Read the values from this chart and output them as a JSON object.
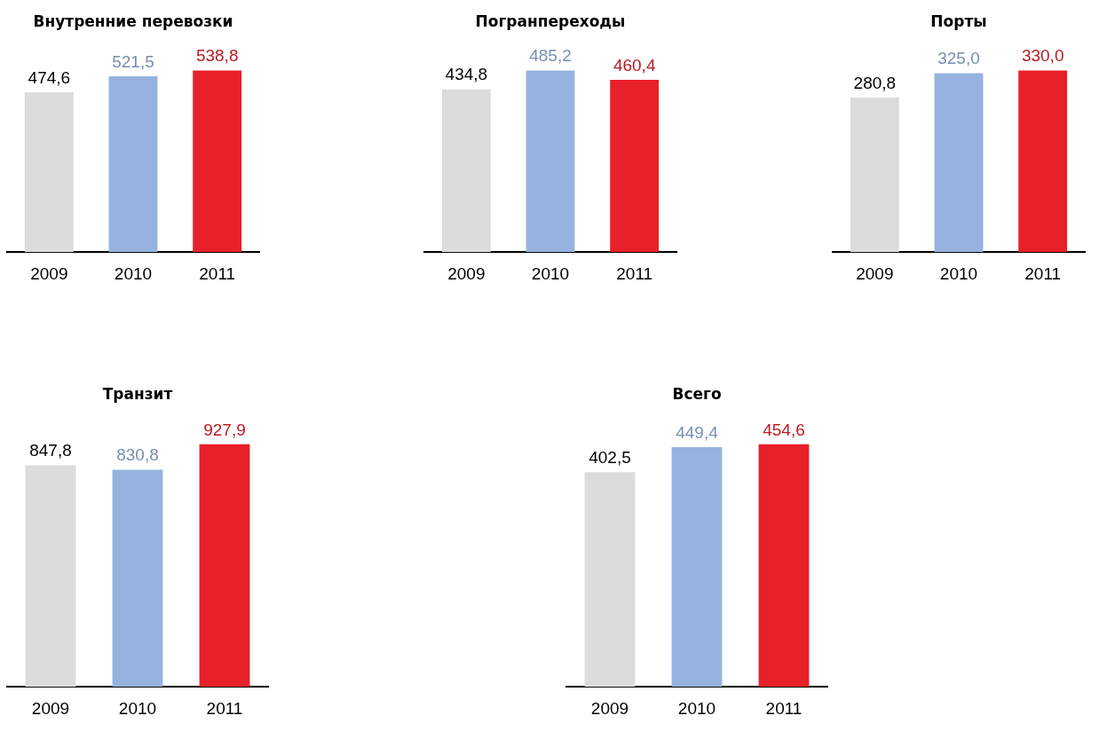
{
  "chart_data": [
    {
      "type": "bar",
      "title": "Внутренние перевозки",
      "categories": [
        "2009",
        "2010",
        "2011"
      ],
      "values": [
        474.6,
        521.5,
        538.8
      ],
      "colors": [
        "#dcdcdc",
        "#95b3de",
        "#e8202a"
      ],
      "value_labels": [
        "474,6",
        "521,5",
        "538,8"
      ]
    },
    {
      "type": "bar",
      "title": "Погранпереходы",
      "categories": [
        "2009",
        "2010",
        "2011"
      ],
      "values": [
        434.8,
        485.2,
        460.4
      ],
      "colors": [
        "#dcdcdc",
        "#95b3de",
        "#e8202a"
      ],
      "value_labels": [
        "434,8",
        "485,2",
        "460,4"
      ]
    },
    {
      "type": "bar",
      "title": "Порты",
      "categories": [
        "2009",
        "2010",
        "2011"
      ],
      "values": [
        280.8,
        325.0,
        330.0
      ],
      "colors": [
        "#dcdcdc",
        "#95b3de",
        "#e8202a"
      ],
      "value_labels": [
        "280,8",
        "325,0",
        "330,0"
      ]
    },
    {
      "type": "bar",
      "title": "Транзит",
      "categories": [
        "2009",
        "2010",
        "2011"
      ],
      "values": [
        847.8,
        830.8,
        927.9
      ],
      "colors": [
        "#dcdcdc",
        "#95b3de",
        "#e8202a"
      ],
      "value_labels": [
        "847,8",
        "830,8",
        "927,9"
      ]
    },
    {
      "type": "bar",
      "title": "Всего",
      "categories": [
        "2009",
        "2010",
        "2011"
      ],
      "values": [
        402.5,
        449.4,
        454.6
      ],
      "colors": [
        "#dcdcdc",
        "#95b3de",
        "#e8202a"
      ],
      "value_labels": [
        "402,5",
        "449,4",
        "454,6"
      ]
    }
  ]
}
